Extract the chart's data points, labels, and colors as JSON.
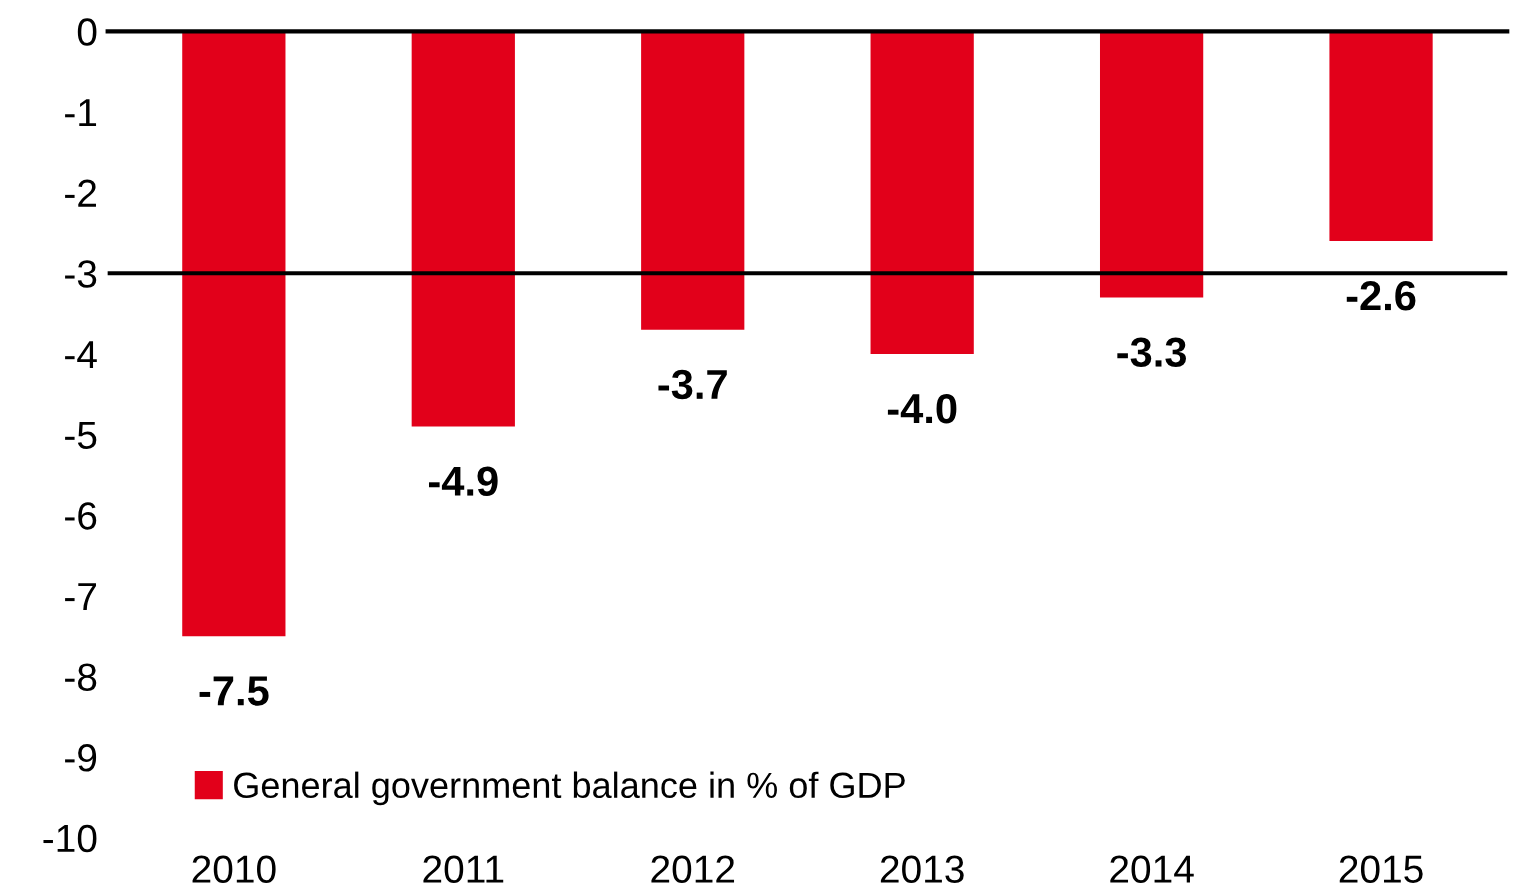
{
  "chart_data": {
    "type": "bar",
    "categories": [
      "2010",
      "2011",
      "2012",
      "2013",
      "2014",
      "2015"
    ],
    "series": [
      {
        "name": "General government balance in % of GDP",
        "color": "#e2001a",
        "values": [
          -7.5,
          -4.9,
          -3.7,
          -4.0,
          -3.3,
          -2.6
        ],
        "value_labels": [
          "-7.5",
          "-4.9",
          "-3.7",
          "-4.0",
          "-3.3",
          "-2.6"
        ]
      }
    ],
    "ylim": [
      -10,
      0
    ],
    "yticks": [
      0,
      -1,
      -2,
      -3,
      -4,
      -5,
      -6,
      -7,
      -8,
      -9,
      -10
    ],
    "ref_lines": [
      {
        "axis": "y",
        "value": -3,
        "color": "#000000"
      }
    ],
    "legend": "bottom left",
    "grid": false
  }
}
